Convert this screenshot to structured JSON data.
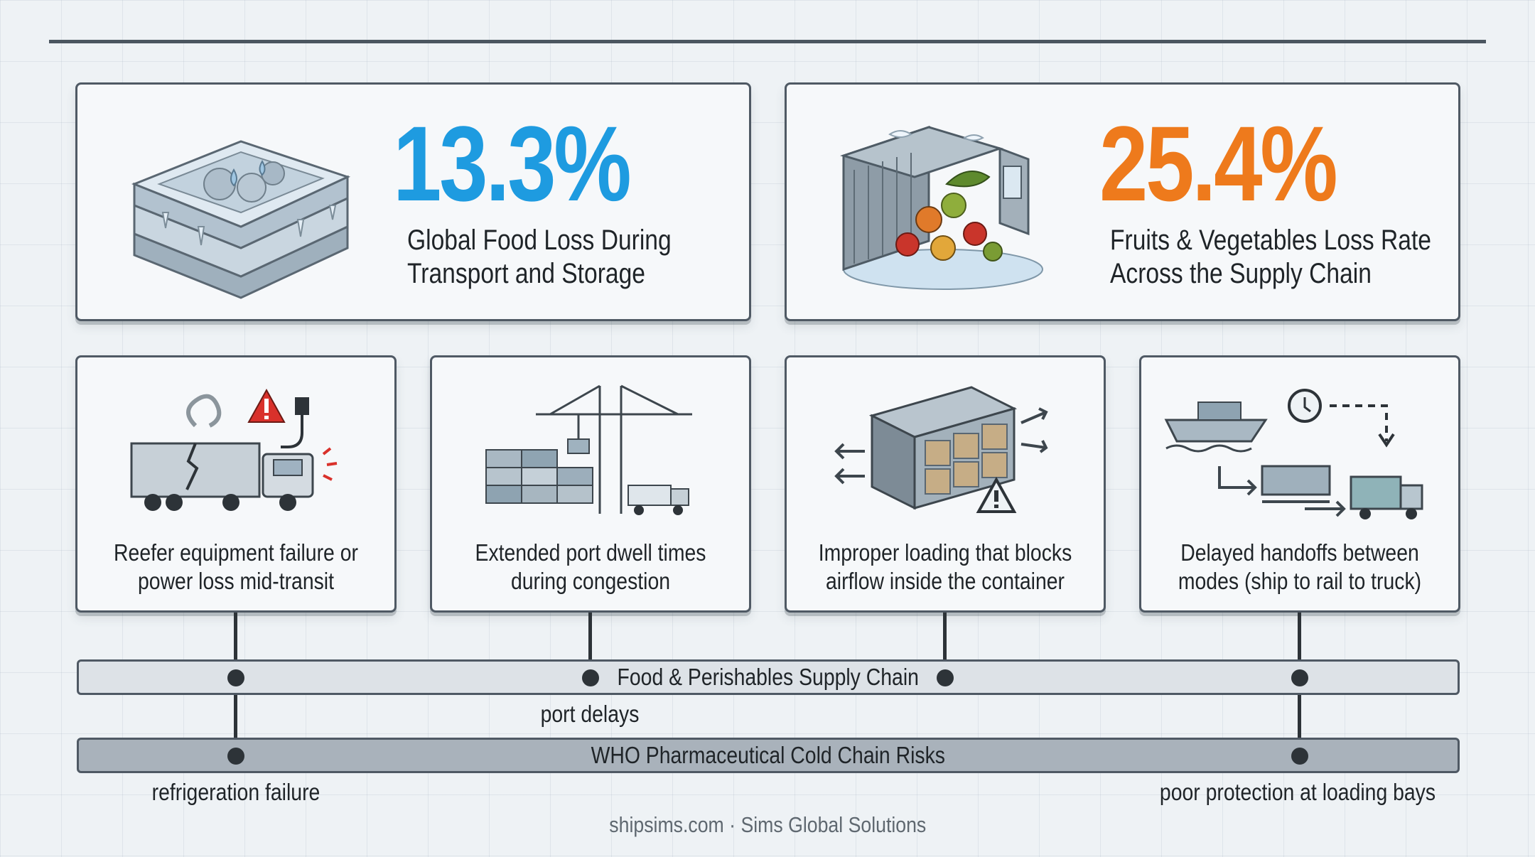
{
  "stats": [
    {
      "value": "13.3%",
      "label_line1": "Global Food Loss During",
      "label_line2": "Transport and Storage",
      "color": "#1e9be0",
      "icon": "frozen-crate-icon"
    },
    {
      "value": "25.4%",
      "label_line1": "Fruits & Vegetables Loss Rate",
      "label_line2": "Across the Supply Chain",
      "color": "#ee7a1c",
      "icon": "spoiled-produce-container-icon"
    }
  ],
  "risks": [
    {
      "line1": "Reefer equipment failure or",
      "line2": "power loss mid-transit",
      "icon": "broken-reefer-truck-icon"
    },
    {
      "line1": "Extended port dwell times",
      "line2": "during congestion",
      "icon": "port-crane-containers-icon"
    },
    {
      "line1": "Improper loading that blocks",
      "line2": "airflow inside the container",
      "icon": "blocked-airflow-container-icon"
    },
    {
      "line1": "Delayed handoffs between",
      "line2": "modes (ship to rail to truck)",
      "icon": "intermodal-handoff-icon"
    }
  ],
  "bands": {
    "food": "Food & Perishables Supply Chain",
    "who": "WHO Pharmaceutical Cold Chain Risks"
  },
  "annotations": {
    "port_delays": "port delays",
    "refrigeration_failure": "refrigeration failure",
    "loading_bays": "poor protection at loading bays"
  },
  "footer": "shipsims.com · Sims Global Solutions",
  "colors": {
    "accent_blue": "#1e9be0",
    "accent_orange": "#ee7a1c",
    "alert_red": "#d9312b",
    "ink": "#2d3338"
  }
}
